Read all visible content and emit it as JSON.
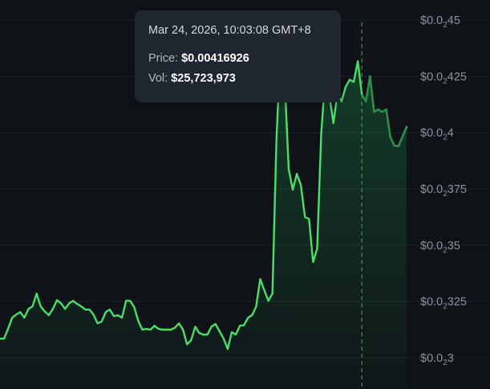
{
  "tooltip": {
    "date": "Mar 24, 2026, 10:03:08 GMT+8",
    "price_label": "Price:",
    "price_value": "$0.00416926",
    "vol_label": "Vol:",
    "vol_value": "$25,723,973"
  },
  "colors": {
    "background": "#0f1318",
    "grid": "#1b222a",
    "line": "#4ade6b",
    "crosshair": "#2f9e4f",
    "tooltip_bg": "#1f262f",
    "tick_text": "#8b929c"
  },
  "chart_data": {
    "type": "area",
    "title": "",
    "xlabel": "",
    "ylabel": "",
    "y_unit": "USD",
    "ylim": [
      0.00296,
      0.004535
    ],
    "y_axis_position": "right",
    "grid": true,
    "yticks": [
      {
        "value": 0.0045,
        "prefix": "$0.0",
        "sub": "2",
        "suffix": "45"
      },
      {
        "value": 0.00425,
        "prefix": "$0.0",
        "sub": "2",
        "suffix": "425"
      },
      {
        "value": 0.004,
        "prefix": "$0.0",
        "sub": "2",
        "suffix": "4"
      },
      {
        "value": 0.00375,
        "prefix": "$0.0",
        "sub": "2",
        "suffix": "375"
      },
      {
        "value": 0.0035,
        "prefix": "$0.0",
        "sub": "2",
        "suffix": "35"
      },
      {
        "value": 0.00325,
        "prefix": "$0.0",
        "sub": "2",
        "suffix": "325"
      },
      {
        "value": 0.003,
        "prefix": "$0.0",
        "sub": "2",
        "suffix": "3"
      }
    ],
    "highlight_index": 89,
    "series": [
      {
        "values": [
          0.003085,
          0.003085,
          0.00313,
          0.003178,
          0.003192,
          0.003203,
          0.003178,
          0.003217,
          0.003228,
          0.003285,
          0.003228,
          0.003206,
          0.003189,
          0.003217,
          0.003256,
          0.003242,
          0.003217,
          0.003242,
          0.003253,
          0.003239,
          0.003228,
          0.003214,
          0.003214,
          0.003192,
          0.003153,
          0.003161,
          0.003203,
          0.003214,
          0.003185,
          0.003189,
          0.003178,
          0.003253,
          0.003253,
          0.003225,
          0.003164,
          0.003125,
          0.003128,
          0.003125,
          0.003142,
          0.003128,
          0.003125,
          0.003125,
          0.003125,
          0.003133,
          0.003153,
          0.003125,
          0.00306,
          0.003078,
          0.003138,
          0.00311,
          0.003103,
          0.003103,
          0.003138,
          0.00315,
          0.003117,
          0.003085,
          0.003039,
          0.003114,
          0.003103,
          0.003142,
          0.003145,
          0.003178,
          0.003189,
          0.003228,
          0.00335,
          0.0033,
          0.003253,
          0.003285,
          0.003975,
          0.004375,
          0.004239,
          0.003839,
          0.003746,
          0.003817,
          0.003767,
          0.003625,
          0.003617,
          0.003425,
          0.003485,
          0.003996,
          0.004246,
          0.004167,
          0.004042,
          0.004178,
          0.004139,
          0.004203,
          0.004235,
          0.004225,
          0.004317,
          0.004169,
          0.004139,
          0.00425,
          0.004092,
          0.004103,
          0.004092,
          0.004103,
          0.00398,
          0.003942,
          0.00394,
          0.003982,
          0.004025
        ]
      }
    ]
  }
}
